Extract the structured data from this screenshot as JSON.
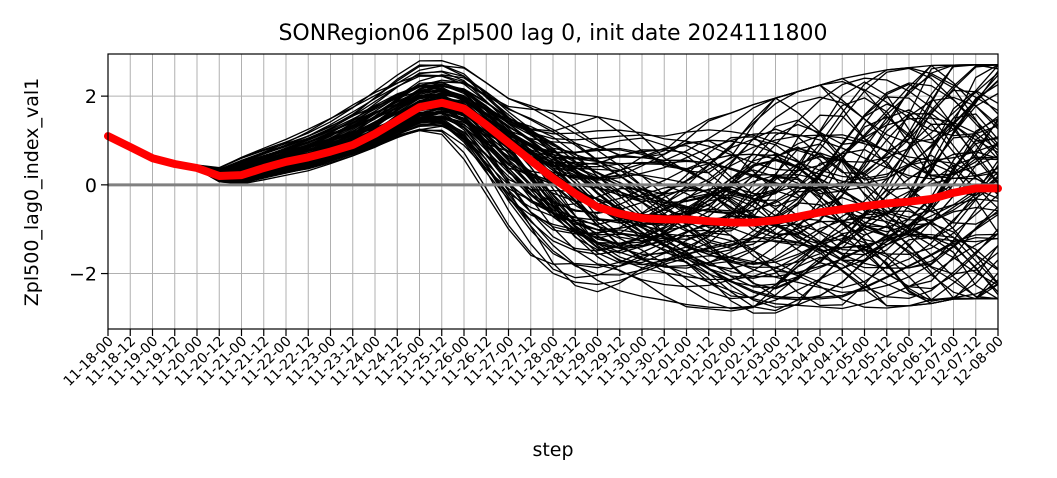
{
  "chart_data": {
    "type": "line",
    "title": "SONRegion06 Zpl500 lag 0, init date 2024111800",
    "xlabel": "step",
    "ylabel": "Zpl500_lag0_index_val1",
    "categories": [
      "11-18-00",
      "11-18-12",
      "11-19-00",
      "11-19-12",
      "11-20-00",
      "11-20-12",
      "11-21-00",
      "11-21-12",
      "11-22-00",
      "11-22-12",
      "11-23-00",
      "11-23-12",
      "11-24-00",
      "11-24-12",
      "11-25-00",
      "11-25-12",
      "11-26-00",
      "11-26-12",
      "11-27-00",
      "11-27-12",
      "11-28-00",
      "11-28-12",
      "11-29-00",
      "11-29-12",
      "11-30-00",
      "11-30-12",
      "12-01-00",
      "12-01-12",
      "12-02-00",
      "12-02-12",
      "12-03-00",
      "12-03-12",
      "12-04-00",
      "12-04-12",
      "12-05-00",
      "12-05-12",
      "12-06-00",
      "12-06-12",
      "12-07-00",
      "12-07-12",
      "12-08-00"
    ],
    "yticks": [
      -2,
      0,
      2
    ],
    "ylim": [
      -3.25,
      2.95
    ],
    "grid": true,
    "ensemble_member_count": 100,
    "ensemble_color": "#000000",
    "ensemble_envelope": {
      "lower": [
        1.1,
        0.85,
        0.6,
        0.45,
        0.35,
        0.05,
        0.0,
        0.1,
        0.2,
        0.3,
        0.45,
        0.6,
        0.75,
        0.95,
        1.05,
        1.0,
        0.5,
        -0.3,
        -1.1,
        -1.7,
        -2.2,
        -2.5,
        -2.7,
        -2.8,
        -2.8,
        -2.8,
        -2.85,
        -2.9,
        -2.95,
        -3.0,
        -3.0,
        -2.95,
        -2.95,
        -3.0,
        -2.95,
        -2.9,
        -2.85,
        -2.8,
        -2.7,
        -2.7,
        -2.7
      ],
      "upper": [
        1.1,
        0.85,
        0.6,
        0.5,
        0.45,
        0.4,
        0.65,
        0.85,
        1.05,
        1.3,
        1.6,
        1.95,
        2.3,
        2.6,
        2.85,
        2.85,
        2.7,
        2.35,
        2.0,
        1.85,
        1.75,
        1.7,
        1.65,
        1.55,
        1.45,
        1.35,
        1.45,
        1.6,
        1.75,
        1.95,
        2.1,
        2.25,
        2.4,
        2.55,
        2.65,
        2.75,
        2.8,
        2.85,
        2.85,
        2.85,
        2.85
      ]
    },
    "series": [
      {
        "name": "",
        "color": "#ff0000",
        "values": [
          1.1,
          0.85,
          0.6,
          0.47,
          0.38,
          0.2,
          0.22,
          0.38,
          0.52,
          0.62,
          0.75,
          0.9,
          1.15,
          1.45,
          1.75,
          1.85,
          1.72,
          1.35,
          0.95,
          0.55,
          0.15,
          -0.2,
          -0.5,
          -0.65,
          -0.75,
          -0.78,
          -0.78,
          -0.82,
          -0.85,
          -0.85,
          -0.8,
          -0.72,
          -0.62,
          -0.55,
          -0.48,
          -0.42,
          -0.38,
          -0.32,
          -0.18,
          -0.08,
          -0.08
        ]
      }
    ],
    "reference_line": {
      "y": 0,
      "color": "#808080"
    }
  }
}
